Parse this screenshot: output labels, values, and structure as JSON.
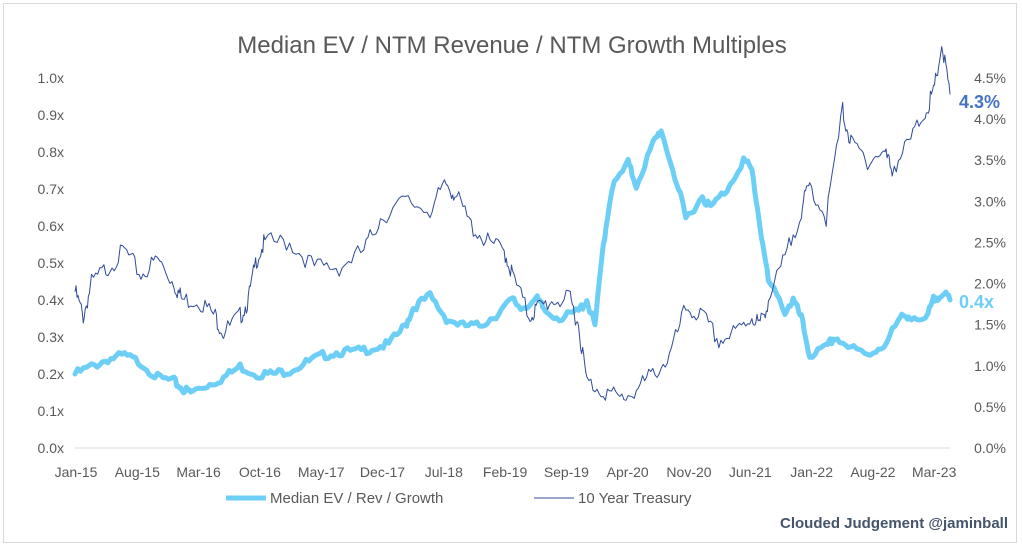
{
  "chart_data": {
    "type": "line",
    "title": "Median EV / NTM Revenue / NTM Growth Multiples",
    "x_tick_labels": [
      "Jan-15",
      "Aug-15",
      "Mar-16",
      "Oct-16",
      "May-17",
      "Dec-17",
      "Jul-18",
      "Feb-19",
      "Sep-19",
      "Apr-20",
      "Nov-20",
      "Jun-21",
      "Jan-22",
      "Aug-22",
      "Mar-23"
    ],
    "x_range": [
      "2015-01",
      "2023-11"
    ],
    "y_left": {
      "range": [
        0,
        1.0
      ],
      "ticks": [
        "0.0x",
        "0.1x",
        "0.2x",
        "0.3x",
        "0.4x",
        "0.5x",
        "0.6x",
        "0.7x",
        "0.8x",
        "0.9x",
        "1.0x"
      ]
    },
    "y_right": {
      "range": [
        0,
        4.5
      ],
      "ticks": [
        "0.0%",
        "0.5%",
        "1.0%",
        "1.5%",
        "2.0%",
        "2.5%",
        "3.0%",
        "3.5%",
        "4.0%",
        "4.5%"
      ]
    },
    "grid": false,
    "legend_position": "bottom",
    "series": [
      {
        "name": "Median EV / Rev / Growth",
        "axis": "left",
        "color": "#6dcff6",
        "end_label": "0.4x",
        "x": [
          "2015-01",
          "2015-03",
          "2015-05",
          "2015-07",
          "2015-09",
          "2015-11",
          "2016-01",
          "2016-02",
          "2016-03",
          "2016-05",
          "2016-07",
          "2016-09",
          "2016-11",
          "2017-01",
          "2017-03",
          "2017-05",
          "2017-07",
          "2017-09",
          "2017-11",
          "2018-01",
          "2018-03",
          "2018-05",
          "2018-06",
          "2018-08",
          "2018-10",
          "2018-12",
          "2019-02",
          "2019-04",
          "2019-06",
          "2019-07",
          "2019-09",
          "2019-10",
          "2019-12",
          "2020-02",
          "2020-03",
          "2020-04",
          "2020-05",
          "2020-06",
          "2020-08",
          "2020-09",
          "2020-11",
          "2020-12",
          "2021-02",
          "2021-03",
          "2021-05",
          "2021-06",
          "2021-08",
          "2021-10",
          "2021-11",
          "2021-12",
          "2022-01",
          "2022-03",
          "2022-04",
          "2022-05",
          "2022-06",
          "2022-08",
          "2022-09",
          "2022-11",
          "2023-01",
          "2023-03",
          "2023-05",
          "2023-06",
          "2023-08",
          "2023-09",
          "2023-10",
          "2023-11"
        ],
        "y": [
          0.2,
          0.22,
          0.24,
          0.25,
          0.23,
          0.19,
          0.18,
          0.16,
          0.15,
          0.17,
          0.19,
          0.22,
          0.2,
          0.2,
          0.21,
          0.23,
          0.25,
          0.26,
          0.26,
          0.27,
          0.28,
          0.33,
          0.38,
          0.41,
          0.35,
          0.33,
          0.33,
          0.36,
          0.4,
          0.38,
          0.4,
          0.37,
          0.35,
          0.37,
          0.4,
          0.33,
          0.55,
          0.7,
          0.77,
          0.71,
          0.82,
          0.86,
          0.71,
          0.62,
          0.68,
          0.65,
          0.7,
          0.78,
          0.75,
          0.6,
          0.45,
          0.37,
          0.4,
          0.35,
          0.25,
          0.27,
          0.3,
          0.27,
          0.25,
          0.28,
          0.35,
          0.36,
          0.34,
          0.4,
          0.42,
          0.4
        ]
      },
      {
        "name": "10 Year Treasury",
        "axis": "right",
        "color": "#2f4b9a",
        "end_label": "4.3%",
        "x": [
          "2015-01",
          "2015-02",
          "2015-03",
          "2015-05",
          "2015-07",
          "2015-09",
          "2015-11",
          "2016-01",
          "2016-02",
          "2016-04",
          "2016-06",
          "2016-07",
          "2016-09",
          "2016-10",
          "2016-11",
          "2016-12",
          "2017-03",
          "2017-06",
          "2017-09",
          "2017-12",
          "2018-02",
          "2018-05",
          "2018-08",
          "2018-10",
          "2018-11",
          "2019-01",
          "2019-03",
          "2019-05",
          "2019-06",
          "2019-08",
          "2019-09",
          "2019-11",
          "2020-01",
          "2020-02",
          "2020-03",
          "2020-05",
          "2020-07",
          "2020-09",
          "2020-11",
          "2021-01",
          "2021-03",
          "2021-05",
          "2021-07",
          "2021-09",
          "2021-11",
          "2021-12",
          "2022-01",
          "2022-03",
          "2022-05",
          "2022-06",
          "2022-08",
          "2022-10",
          "2022-11",
          "2023-01",
          "2023-03",
          "2023-04",
          "2023-06",
          "2023-08",
          "2023-09",
          "2023-10",
          "2023-11"
        ],
        "y": [
          1.9,
          1.6,
          2.0,
          2.2,
          2.4,
          2.1,
          2.3,
          2.0,
          1.8,
          1.8,
          1.6,
          1.4,
          1.6,
          1.8,
          2.3,
          2.5,
          2.5,
          2.2,
          2.2,
          2.4,
          2.8,
          3.0,
          2.9,
          3.2,
          3.1,
          2.7,
          2.5,
          2.4,
          2.1,
          1.6,
          1.7,
          1.8,
          1.8,
          1.5,
          0.8,
          0.7,
          0.6,
          0.7,
          0.9,
          1.1,
          1.7,
          1.6,
          1.3,
          1.4,
          1.6,
          1.5,
          1.8,
          2.3,
          2.9,
          3.2,
          2.8,
          4.1,
          3.7,
          3.5,
          3.6,
          3.4,
          3.7,
          4.1,
          4.3,
          4.9,
          4.3
        ]
      }
    ]
  },
  "credit": "Clouded Judgement @jaminball"
}
